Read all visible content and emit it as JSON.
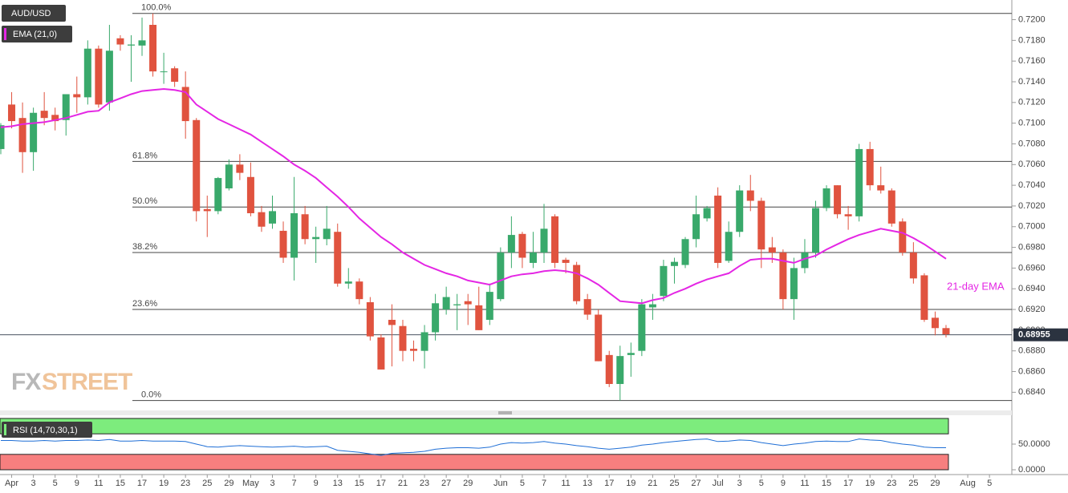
{
  "header": {
    "symbol": "AUD/USD",
    "indicator": "EMA (21,0)",
    "watermark_fx": "FX",
    "watermark_street": "STREET"
  },
  "chart_data": {
    "type": "candlestick",
    "categories": [
      null,
      "Apr",
      null,
      "3",
      null,
      "5",
      null,
      "9",
      null,
      "11",
      null,
      "15",
      null,
      "17",
      null,
      "19",
      null,
      "23",
      null,
      "25",
      null,
      "29",
      null,
      "May",
      null,
      "3",
      null,
      "7",
      null,
      "9",
      null,
      "13",
      null,
      "15",
      null,
      "17",
      null,
      "21",
      null,
      "23",
      null,
      "27",
      null,
      "29",
      null,
      null,
      "Jun",
      null,
      "5",
      null,
      "7",
      null,
      "11",
      null,
      "13",
      null,
      "17",
      null,
      "19",
      null,
      "21",
      null,
      "25",
      null,
      "27",
      null,
      "Jul",
      null,
      "3",
      null,
      "5",
      null,
      "9",
      null,
      "11",
      null,
      "15",
      null,
      "17",
      null,
      "19",
      null,
      "23",
      null,
      "25",
      null,
      "29",
      null,
      null,
      "Aug",
      null,
      "5"
    ],
    "open": [
      0.7075,
      0.7118,
      0.7105,
      0.7072,
      0.7112,
      0.7108,
      0.7103,
      0.7128,
      0.7125,
      0.7172,
      0.712,
      0.7182,
      0.7175,
      0.7175,
      0.7195,
      0.715,
      0.7153,
      0.7135,
      0.7103,
      0.7017,
      0.7015,
      0.7037,
      0.706,
      0.7048,
      0.7014,
      0.7003,
      0.6996,
      0.697,
      0.7012,
      0.6988,
      0.6988,
      0.6995,
      0.6945,
      0.6947,
      0.6927,
      0.6893,
      0.691,
      0.6904,
      0.6882,
      0.688,
      0.6898,
      0.692,
      0.6924,
      0.6928,
      0.6924,
      0.691,
      0.693,
      0.6975,
      0.6993,
      0.6965,
      0.6975,
      0.701,
      0.6968,
      0.6963,
      0.693,
      0.6915,
      0.6876,
      0.6848,
      0.6876,
      0.688,
      0.6922,
      0.6933,
      0.6962,
      0.6963,
      0.6988,
      0.7008,
      0.703,
      0.6967,
      0.6995,
      0.7035,
      0.7025,
      0.698,
      0.6975,
      0.693,
      0.696,
      0.6975,
      0.7018,
      0.704,
      0.7012,
      0.701,
      0.7075,
      0.704,
      0.7035,
      0.7005,
      0.6975,
      0.6953,
      0.6912,
      0.6902,
      null,
      null,
      null,
      null
    ],
    "high": [
      0.71,
      0.713,
      0.712,
      0.7115,
      0.713,
      0.7115,
      0.7128,
      0.7145,
      0.718,
      0.7175,
      0.7195,
      0.7185,
      0.7185,
      0.7202,
      0.7206,
      0.7168,
      0.7155,
      0.715,
      0.7105,
      0.703,
      0.7048,
      0.7065,
      0.707,
      0.7062,
      0.702,
      0.703,
      0.7005,
      0.7048,
      0.702,
      0.7,
      0.702,
      0.7003,
      0.696,
      0.695,
      0.6932,
      0.6896,
      0.6925,
      0.691,
      0.689,
      0.6905,
      0.6935,
      0.6942,
      0.6935,
      0.6935,
      0.6942,
      0.6945,
      0.698,
      0.701,
      0.6995,
      0.6995,
      0.7022,
      0.7012,
      0.697,
      0.6966,
      0.6935,
      0.692,
      0.688,
      0.6885,
      0.6888,
      0.693,
      0.6935,
      0.6968,
      0.697,
      0.699,
      0.703,
      0.702,
      0.7038,
      0.7005,
      0.704,
      0.705,
      0.7028,
      0.699,
      0.6978,
      0.697,
      0.6988,
      0.7025,
      0.704,
      0.704,
      0.702,
      0.708,
      0.7082,
      0.7058,
      0.7037,
      0.7008,
      0.6985,
      0.6955,
      0.6918,
      0.6905,
      null,
      null,
      null,
      null
    ],
    "low": [
      0.707,
      0.7095,
      0.7052,
      0.7054,
      0.7098,
      0.7093,
      0.7088,
      0.711,
      0.7118,
      0.7115,
      0.7112,
      0.717,
      0.714,
      0.7165,
      0.7145,
      0.7138,
      0.7135,
      0.7085,
      0.7005,
      0.699,
      0.7012,
      0.7035,
      0.7045,
      0.701,
      0.6995,
      0.6998,
      0.6965,
      0.6948,
      0.6983,
      0.6965,
      0.6982,
      0.6942,
      0.694,
      0.6925,
      0.689,
      0.6862,
      0.6865,
      0.687,
      0.687,
      0.6863,
      0.689,
      0.6915,
      0.69,
      0.6905,
      0.69,
      0.6905,
      0.6928,
      0.696,
      0.696,
      0.696,
      0.6965,
      0.696,
      0.6955,
      0.6925,
      0.691,
      0.687,
      0.6845,
      0.6832,
      0.6855,
      0.6875,
      0.691,
      0.6928,
      0.6945,
      0.696,
      0.698,
      0.7005,
      0.696,
      0.6965,
      0.699,
      0.7015,
      0.696,
      0.6965,
      0.692,
      0.691,
      0.6955,
      0.697,
      0.7015,
      0.7008,
      0.6997,
      0.7005,
      0.7035,
      0.7032,
      0.7,
      0.6972,
      0.6945,
      0.6908,
      0.6895,
      0.6893,
      null,
      null,
      null,
      null
    ],
    "close": [
      0.7098,
      0.7102,
      0.7072,
      0.711,
      0.7105,
      0.7102,
      0.7128,
      0.7125,
      0.7172,
      0.7118,
      0.717,
      0.7176,
      0.7176,
      0.718,
      0.715,
      0.715,
      0.714,
      0.7102,
      0.7015,
      0.7015,
      0.7047,
      0.706,
      0.7052,
      0.7013,
      0.7,
      0.7015,
      0.697,
      0.7013,
      0.6988,
      0.699,
      0.6998,
      0.6945,
      0.6947,
      0.693,
      0.6894,
      0.6862,
      0.6905,
      0.688,
      0.688,
      0.6898,
      0.6926,
      0.6932,
      0.6925,
      0.6925,
      0.69,
      0.6937,
      0.6975,
      0.6992,
      0.697,
      0.6975,
      0.6998,
      0.6965,
      0.6965,
      0.6928,
      0.6915,
      0.687,
      0.6848,
      0.6875,
      0.6878,
      0.6925,
      0.6925,
      0.6962,
      0.6966,
      0.6988,
      0.7012,
      0.7018,
      0.6965,
      0.6995,
      0.7035,
      0.7025,
      0.6978,
      0.6975,
      0.693,
      0.696,
      0.6975,
      0.7018,
      0.7037,
      0.7012,
      0.701,
      0.7075,
      0.704,
      0.7035,
      0.7003,
      0.6975,
      0.695,
      0.691,
      0.6902,
      0.6896,
      null,
      null,
      null,
      null
    ],
    "up_color": "#39a96b",
    "down_color": "#e0533f",
    "ema": {
      "name": "EMA (21,0)",
      "color": "#e426e4",
      "values": [
        0.7096,
        0.7097,
        0.7099,
        0.71,
        0.7101,
        0.7103,
        0.7105,
        0.7108,
        0.7111,
        0.7112,
        0.712,
        0.7124,
        0.7128,
        0.7131,
        0.7132,
        0.7133,
        0.7132,
        0.713,
        0.7118,
        0.7111,
        0.7104,
        0.7099,
        0.7094,
        0.7089,
        0.7082,
        0.7075,
        0.7068,
        0.706,
        0.7054,
        0.7047,
        0.7038,
        0.7029,
        0.7019,
        0.7008,
        0.6999,
        0.699,
        0.6983,
        0.6975,
        0.6969,
        0.6963,
        0.6959,
        0.6955,
        0.6952,
        0.6948,
        0.6946,
        0.6944,
        0.6948,
        0.6952,
        0.6954,
        0.6955,
        0.6957,
        0.6958,
        0.6957,
        0.6955,
        0.695,
        0.6944,
        0.6936,
        0.6928,
        0.6927,
        0.6926,
        0.6929,
        0.6931,
        0.6936,
        0.694,
        0.6945,
        0.6949,
        0.6952,
        0.6955,
        0.6962,
        0.6968,
        0.6969,
        0.6969,
        0.6967,
        0.6965,
        0.6969,
        0.6972,
        0.6978,
        0.6983,
        0.6988,
        0.6992,
        0.6995,
        0.6998,
        0.6996,
        0.6994,
        0.6989,
        0.6983,
        0.6976,
        0.6969,
        null,
        null,
        null,
        null
      ]
    },
    "annotation": "21-day EMA",
    "fib_levels": [
      {
        "value": 100,
        "label": "100.0%",
        "price": 0.7206
      },
      {
        "value": 61.8,
        "label": "61.8%",
        "price": 0.7063
      },
      {
        "value": 50,
        "label": "50.0%",
        "price": 0.7019
      },
      {
        "value": 38.2,
        "label": "38.2%",
        "price": 0.6975
      },
      {
        "value": 23.6,
        "label": "23.6%",
        "price": 0.692
      },
      {
        "value": 0,
        "label": "0.0%",
        "price": 0.6832
      }
    ],
    "last_price": 0.68955,
    "ylim": [
      0.6824,
      0.7219
    ],
    "yticks": [
      {
        "value": 0.684,
        "label": "0.6840"
      },
      {
        "value": 0.686,
        "label": "0.6860"
      },
      {
        "value": 0.688,
        "label": "0.6880"
      },
      {
        "value": 0.69,
        "label": "0.6900"
      },
      {
        "value": 0.692,
        "label": "0.6920"
      },
      {
        "value": 0.694,
        "label": "0.6940"
      },
      {
        "value": 0.696,
        "label": "0.6960"
      },
      {
        "value": 0.698,
        "label": "0.6980"
      },
      {
        "value": 0.7,
        "label": "0.7000"
      },
      {
        "value": 0.702,
        "label": "0.7020"
      },
      {
        "value": 0.704,
        "label": "0.7040"
      },
      {
        "value": 0.706,
        "label": "0.7060"
      },
      {
        "value": 0.708,
        "label": "0.7080"
      },
      {
        "value": 0.71,
        "label": "0.7100"
      },
      {
        "value": 0.712,
        "label": "0.7120"
      },
      {
        "value": 0.714,
        "label": "0.7140"
      },
      {
        "value": 0.716,
        "label": "0.7160"
      },
      {
        "value": 0.718,
        "label": "0.7180"
      },
      {
        "value": 0.72,
        "label": "0.7200"
      }
    ]
  },
  "rsi": {
    "type": "line",
    "name": "RSI (14,70,30,1)",
    "color": "#1f6fd6",
    "values": [
      57,
      57,
      56,
      56,
      57,
      56,
      57,
      57,
      58,
      57,
      59,
      56,
      56,
      57,
      56,
      56,
      56,
      55,
      50,
      45,
      44,
      46,
      47,
      46,
      45,
      44,
      45,
      46,
      44,
      45,
      46,
      38,
      36,
      34,
      31,
      28,
      32,
      33,
      34,
      36,
      40,
      42,
      43,
      43,
      42,
      44,
      50,
      53,
      52,
      53,
      55,
      52,
      50,
      47,
      45,
      42,
      40,
      42,
      44,
      48,
      50,
      53,
      55,
      57,
      59,
      60,
      55,
      56,
      58,
      57,
      53,
      50,
      47,
      50,
      52,
      55,
      56,
      55,
      55,
      60,
      58,
      57,
      53,
      50,
      48,
      44,
      43,
      43,
      null,
      null,
      null,
      null
    ],
    "upper": 70,
    "lower": 30,
    "ylim": [
      0,
      100
    ],
    "yticks": [
      {
        "value": 50,
        "label": "50.0000"
      },
      {
        "value": 0,
        "label": "0.0000"
      }
    ]
  }
}
